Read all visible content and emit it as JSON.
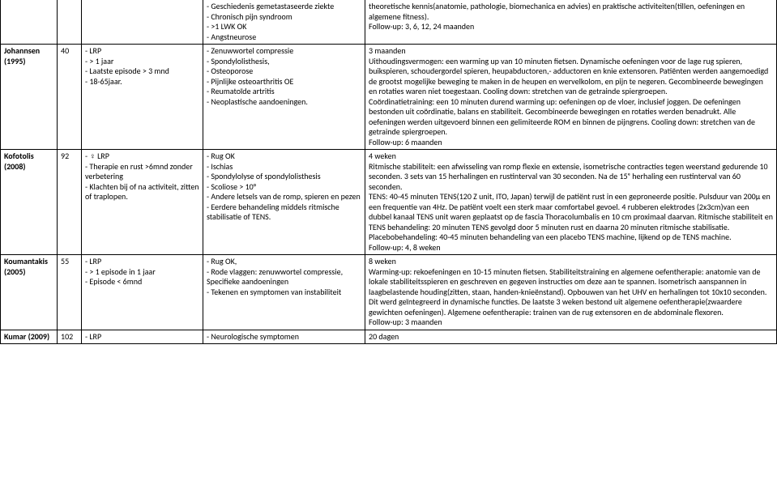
{
  "rows": [
    {
      "author": "",
      "year": "",
      "n": "",
      "col3": "",
      "col4": "- Geschiedenis gemetastaseerde ziekte\n- Chronisch pijn syndroom\n- >1 LWK OK\n- Angstneurose",
      "col5": "theoretische kennis(anatomie, pathologie, biomechanica en advies) en praktische activiteiten(tillen, oefeningen en algemene fitness).\nFollow-up: 3, 6, 12, 24 maanden"
    },
    {
      "author": "Johannsen",
      "year": "(1995)",
      "n": "40",
      "col3": "- LRP\n- > 1 jaar\n- Laatste episode > 3 mnd\n- 18-65jaar.",
      "col4": "- Zenuwwortel compressie\n- Spondylolisthesis,\n- Osteoporose\n- Pijnlijke osteoarthritis OE\n- Reumatoïde artritis\n- Neoplastische aandoeningen.",
      "col5": "3 maanden\nUithoudingsvermogen: een warming up van 10 minuten fietsen. Dynamische oefeningen voor de lage rug spieren, buikspieren, schoudergordel spieren, heupabductoren,- adductoren en knie extensoren. Patiënten werden aangemoedigd de grootst mogelijke beweging te maken in de heupen en wervelkolom, en pijn te negeren. Gecombineerde bewegingen en rotaties waren niet toegestaan. Cooling down: stretchen van de getrainde spiergroepen.\nCoördinatietraining: een 10 minuten durend warming up: oefeningen op de vloer, inclusief joggen. De oefeningen bestonden uit coördinatie, balans en stabiliteit. Gecombineerde bewegingen en rotaties werden benadrukt. Alle oefeningen werden uitgevoerd binnen een gelimiteerde ROM en binnen de pijngrens. Cooling down: stretchen van de getrainde spiergroepen.\nFollow-up: 6 maanden"
    },
    {
      "author": "Kofotolis",
      "year": "(2008)",
      "n": "92",
      "col3": "- ♀ LRP\n- Therapie en rust >6mnd zonder verbetering\n- Klachten bij of na activiteit, zitten of traplopen.",
      "col4": "- Rug OK\n- Ischias\n- Spondylolyse of spondylolisthesis\n- Scoliose > 10°\n- Andere letsels van de romp, spieren en pezen\n- Eerdere behandeling middels ritmische stabilisatie of TENS.",
      "col5": "4 weken\nRitmische stabiliteit: een afwisseling van romp flexie en extensie, isometrische contracties tegen weerstand gedurende 10 seconden. 3 sets van 15 herhalingen en rustinterval van 30 seconden. Na de 15ᵉ herhaling een rustinterval van 60 seconden.\nTENS: 40-45 minuten TENS(120 Z unit, ITO, Japan) terwijl de patiënt rust in een geproneerde positie. Pulsduur van 200μ en een frequentie van 4Hz. De patiënt voelt een sterk maar comfortabel gevoel. 4 rubberen elektrodes (2x3cm)van een dubbel kanaal TENS unit waren geplaatst op de fascia Thoracolumbalis en 10 cm proximaal daarvan. Ritmische stabiliteit en TENS behandeling: 20 minuten TENS gevolgd door 5 minuten rust en daarna 20 minuten ritmische stabilisatie. Placebobehandeling: 40-45 minuten behandeling van een placebo TENS machine, lijkend op de TENS machine.\nFollow-up: 4, 8 weken"
    },
    {
      "author": "Koumantakis",
      "year": "(2005)",
      "n": "55",
      "col3": "- LRP\n- > 1 episode in 1 jaar\n- Episode < 6mnd",
      "col4": "- Rug OK,\n- Rode vlaggen: zenuwwortel compressie, Specifieke aandoeningen\n- Tekenen en symptomen van instabiliteit",
      "col5": " 8 weken\nWarming-up: rekoefeningen en 10-15 minuten fietsen. Stabiliteitstraining en algemene oefentherapie: anatomie van de lokale stabiliteitsspieren en geschreven en gegeven instructies om deze aan te spannen. Isometrisch aanspannen in laagbelastende houding(zitten, staan, handen-knieënstand). Opbouwen van het UHV en herhalingen tot 10x10 seconden. Dit werd geïntegreerd in dynamische functies. De laatste 3 weken bestond uit algemene oefentherapie(zwaardere gewichten oefeningen). Algemene oefentherapie: trainen van de rug extensoren en de abdominale flexoren.\nFollow-up: 3 maanden"
    },
    {
      "author": "Kumar (2009)",
      "year": "",
      "n": "102",
      "col3": "- LRP",
      "col4": "- Neurologische symptomen",
      "col5": "20 dagen"
    }
  ]
}
